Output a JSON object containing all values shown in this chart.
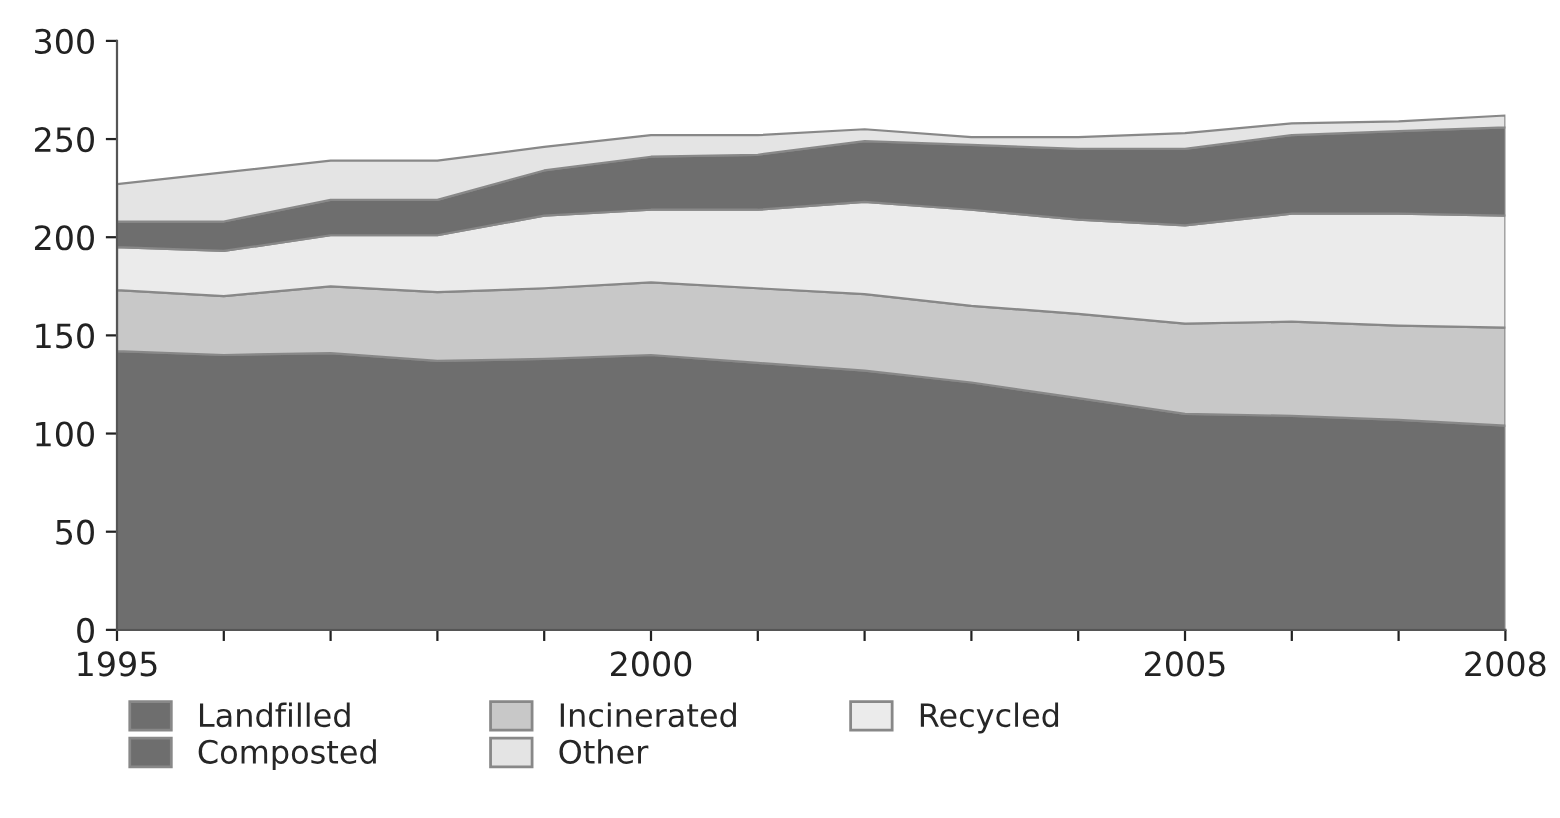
{
  "chart_data": {
    "type": "area",
    "stacked": true,
    "x": [
      1995,
      1996,
      1997,
      1998,
      1999,
      2000,
      2001,
      2002,
      2003,
      2004,
      2005,
      2006,
      2007,
      2008
    ],
    "series": [
      {
        "name": "Landfilled",
        "color": "#6e6e6e",
        "values": [
          142,
          140,
          141,
          137,
          138,
          140,
          136,
          132,
          126,
          118,
          110,
          109,
          107,
          104
        ]
      },
      {
        "name": "Incinerated",
        "color": "#c8c8c8",
        "values": [
          31,
          30,
          34,
          35,
          36,
          37,
          38,
          39,
          39,
          43,
          46,
          48,
          48,
          50
        ]
      },
      {
        "name": "Recycled",
        "color": "#ebebeb",
        "values": [
          22,
          23,
          26,
          29,
          37,
          37,
          40,
          47,
          49,
          48,
          50,
          55,
          57,
          57
        ]
      },
      {
        "name": "Composted",
        "color": "#6e6e6e",
        "values": [
          13,
          15,
          18,
          18,
          23,
          27,
          28,
          31,
          33,
          36,
          39,
          40,
          42,
          45
        ]
      },
      {
        "name": "Other",
        "color": "#e4e4e4",
        "values": [
          19,
          25,
          20,
          20,
          12,
          11,
          10,
          6,
          4,
          6,
          8,
          6,
          5,
          6
        ]
      }
    ],
    "xlim": [
      1995,
      2008
    ],
    "xticks": [
      1995,
      {
        "value": 1996,
        "label": null
      },
      {
        "value": 1997,
        "label": null
      },
      {
        "value": 1998,
        "label": null
      },
      {
        "value": 1999,
        "label": null
      },
      2000,
      {
        "value": 2001,
        "label": null
      },
      {
        "value": 2002,
        "label": null
      },
      {
        "value": 2003,
        "label": null
      },
      {
        "value": 2004,
        "label": null
      },
      2005,
      {
        "value": 2006,
        "label": null
      },
      {
        "value": 2007,
        "label": null
      },
      2008
    ],
    "ylim": [
      0,
      300
    ],
    "yticks": [
      0,
      50,
      100,
      150,
      200,
      250,
      300
    ],
    "grid": false,
    "legend": "bottom"
  }
}
